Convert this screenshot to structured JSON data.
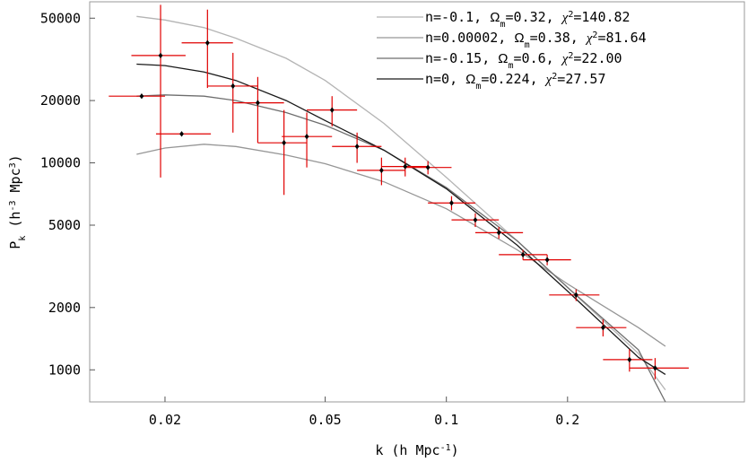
{
  "chart_data": {
    "type": "scatter",
    "xscale": "log",
    "yscale": "log",
    "xlim": [
      0.013,
      0.55
    ],
    "ylim": [
      700,
      60000
    ],
    "grid": false,
    "legend_position": "top-right",
    "xlabel": {
      "base": "k (h Mpc",
      "sup": "-1",
      "tail": ")"
    },
    "ylabel": {
      "base": "P",
      "sub": "k",
      "mid": " (h",
      "sup1": "-3",
      "mid2": " Mpc",
      "sup2": "3",
      "tail": ")"
    },
    "xticks": [
      {
        "value": 0.02,
        "label": "0.02"
      },
      {
        "value": 0.05,
        "label": "0.05"
      },
      {
        "value": 0.1,
        "label": "0.1"
      },
      {
        "value": 0.2,
        "label": "0.2"
      }
    ],
    "yticks": [
      {
        "value": 1000,
        "label": "1000"
      },
      {
        "value": 2000,
        "label": "2000"
      },
      {
        "value": 5000,
        "label": "5000"
      },
      {
        "value": 10000,
        "label": "10000"
      },
      {
        "value": 20000,
        "label": "20000"
      },
      {
        "value": 50000,
        "label": "50000"
      }
    ],
    "series": [
      {
        "kind": "curve",
        "legend_prefix": "n=-0.1, ",
        "legend_omega": "0.32",
        "legend_chi": "140.82",
        "color": "#b4b4b4",
        "x": [
          0.017,
          0.02,
          0.025,
          0.03,
          0.04,
          0.05,
          0.07,
          0.1,
          0.15,
          0.2,
          0.3,
          0.35
        ],
        "y": [
          51000,
          49000,
          45000,
          40000,
          32000,
          25000,
          15500,
          8500,
          4200,
          2500,
          1200,
          800
        ]
      },
      {
        "kind": "curve",
        "legend_prefix": "n=0.00002, ",
        "legend_omega": "0.38",
        "legend_chi": "81.64",
        "color": "#969696",
        "x": [
          0.017,
          0.02,
          0.025,
          0.03,
          0.04,
          0.05,
          0.07,
          0.1,
          0.15,
          0.2,
          0.3,
          0.35
        ],
        "y": [
          11000,
          11800,
          12300,
          12000,
          10900,
          9900,
          8100,
          6000,
          3800,
          2600,
          1600,
          1300
        ]
      },
      {
        "kind": "curve",
        "legend_prefix": "n=-0.15, ",
        "legend_omega": "0.6",
        "legend_chi": "22.00",
        "color": "#6e6e6e",
        "x": [
          0.017,
          0.02,
          0.025,
          0.03,
          0.04,
          0.05,
          0.07,
          0.1,
          0.15,
          0.2,
          0.3,
          0.35
        ],
        "y": [
          21000,
          21300,
          21000,
          20000,
          17500,
          15200,
          11500,
          7600,
          4200,
          2500,
          1250,
          700
        ]
      },
      {
        "kind": "curve",
        "legend_prefix": "n=0, ",
        "legend_omega": "0.224",
        "legend_chi": "27.57",
        "color": "#1a1a1a",
        "x": [
          0.017,
          0.02,
          0.025,
          0.03,
          0.04,
          0.05,
          0.07,
          0.1,
          0.15,
          0.2,
          0.3,
          0.35
        ],
        "y": [
          30000,
          29500,
          27500,
          25000,
          20000,
          16000,
          11500,
          7500,
          4000,
          2400,
          1150,
          950
        ]
      }
    ],
    "points": {
      "marker_color": "#000000",
      "error_color": "#e00000",
      "data": [
        {
          "x": 0.0175,
          "y": 21000,
          "xlo": 0.0145,
          "xhi": 0.02,
          "ylo": 21000,
          "yhi": 21000
        },
        {
          "x": 0.0195,
          "y": 33000,
          "xlo": 0.0165,
          "xhi": 0.0225,
          "ylo": 8500,
          "yhi": 58000
        },
        {
          "x": 0.022,
          "y": 13800,
          "xlo": 0.019,
          "xhi": 0.026,
          "ylo": 13800,
          "yhi": 13800
        },
        {
          "x": 0.0255,
          "y": 38000,
          "xlo": 0.022,
          "xhi": 0.0295,
          "ylo": 23000,
          "yhi": 55000
        },
        {
          "x": 0.0295,
          "y": 23500,
          "xlo": 0.0255,
          "xhi": 0.034,
          "ylo": 14000,
          "yhi": 34000
        },
        {
          "x": 0.034,
          "y": 19500,
          "xlo": 0.0295,
          "xhi": 0.0395,
          "ylo": 12500,
          "yhi": 26000
        },
        {
          "x": 0.0395,
          "y": 12500,
          "xlo": 0.034,
          "xhi": 0.045,
          "ylo": 7000,
          "yhi": 18000
        },
        {
          "x": 0.045,
          "y": 13400,
          "xlo": 0.039,
          "xhi": 0.052,
          "ylo": 9500,
          "yhi": 17500
        },
        {
          "x": 0.052,
          "y": 18000,
          "xlo": 0.045,
          "xhi": 0.06,
          "ylo": 15000,
          "yhi": 21000
        },
        {
          "x": 0.06,
          "y": 12000,
          "xlo": 0.052,
          "xhi": 0.069,
          "ylo": 10000,
          "yhi": 14000
        },
        {
          "x": 0.069,
          "y": 9200,
          "xlo": 0.06,
          "xhi": 0.079,
          "ylo": 7800,
          "yhi": 10600
        },
        {
          "x": 0.079,
          "y": 9600,
          "xlo": 0.069,
          "xhi": 0.09,
          "ylo": 8600,
          "yhi": 10600
        },
        {
          "x": 0.09,
          "y": 9500,
          "xlo": 0.079,
          "xhi": 0.103,
          "ylo": 8800,
          "yhi": 10200
        },
        {
          "x": 0.103,
          "y": 6400,
          "xlo": 0.09,
          "xhi": 0.118,
          "ylo": 5900,
          "yhi": 6900
        },
        {
          "x": 0.118,
          "y": 5300,
          "xlo": 0.103,
          "xhi": 0.135,
          "ylo": 4900,
          "yhi": 5700
        },
        {
          "x": 0.135,
          "y": 4600,
          "xlo": 0.118,
          "xhi": 0.155,
          "ylo": 4300,
          "yhi": 4900
        },
        {
          "x": 0.155,
          "y": 3600,
          "xlo": 0.135,
          "xhi": 0.178,
          "ylo": 3400,
          "yhi": 3800
        },
        {
          "x": 0.178,
          "y": 3400,
          "xlo": 0.155,
          "xhi": 0.204,
          "ylo": 3200,
          "yhi": 3600
        },
        {
          "x": 0.21,
          "y": 2300,
          "xlo": 0.18,
          "xhi": 0.24,
          "ylo": 2150,
          "yhi": 2450
        },
        {
          "x": 0.245,
          "y": 1600,
          "xlo": 0.21,
          "xhi": 0.28,
          "ylo": 1450,
          "yhi": 1750
        },
        {
          "x": 0.285,
          "y": 1120,
          "xlo": 0.245,
          "xhi": 0.325,
          "ylo": 980,
          "yhi": 1260
        },
        {
          "x": 0.33,
          "y": 1020,
          "xlo": 0.285,
          "xhi": 0.4,
          "ylo": 900,
          "yhi": 1140
        }
      ]
    }
  }
}
